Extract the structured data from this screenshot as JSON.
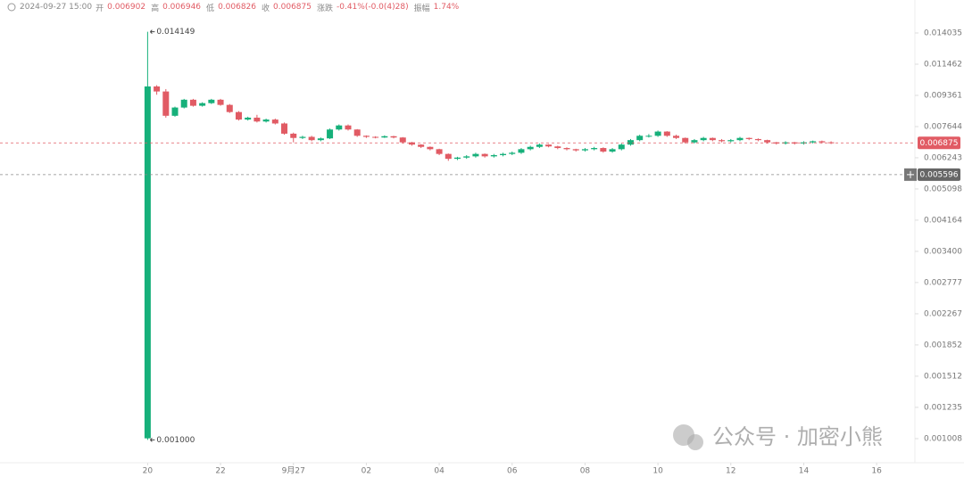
{
  "header": {
    "time": "2024-09-27 15:00",
    "items": [
      {
        "label": "开",
        "value": "0.006902"
      },
      {
        "label": "高",
        "value": "0.006946"
      },
      {
        "label": "低",
        "value": "0.006826"
      },
      {
        "label": "收",
        "value": "0.006875"
      },
      {
        "label": "涨跌",
        "value": "-0.41%(-0.0(4)28)"
      },
      {
        "label": "振幅",
        "value": "1.74%"
      }
    ]
  },
  "watermark": "公众号 · 加密小熊",
  "chart_data": {
    "type": "candlestick",
    "log_scale": true,
    "up_color": "#16b07a",
    "down_color": "#e15b64",
    "ylim": [
      0.000867,
      0.015666
    ],
    "yticks": [
      0.014035,
      0.011462,
      0.009361,
      0.007644,
      0.006243,
      0.005098,
      0.004164,
      {
        "value": 0.0034,
        "label": "0.003400"
      },
      0.002777,
      0.002267,
      0.001852,
      0.001512,
      0.001235,
      0.001008
    ],
    "xlim": [
      -16.2,
      84.2
    ],
    "xticks": [
      {
        "value": 0,
        "label": "20"
      },
      {
        "value": 8,
        "label": "22"
      },
      {
        "value": 16,
        "label": "9月27"
      },
      {
        "value": 24,
        "label": "02"
      },
      {
        "value": 32,
        "label": "04"
      },
      {
        "value": 40,
        "label": "06"
      },
      {
        "value": 48,
        "label": "08"
      },
      {
        "value": 56,
        "label": "10"
      },
      {
        "value": 64,
        "label": "12"
      },
      {
        "value": 72,
        "label": "14"
      },
      {
        "value": 80,
        "label": "16"
      }
    ],
    "max_label": "0.014149",
    "min_label": "0.001000",
    "crosshair_price": 0.005596,
    "ohlc": [
      [
        0.00101,
        0.014149,
        0.001,
        0.00992
      ],
      [
        0.00992,
        0.01,
        0.0094,
        0.0096
      ],
      [
        0.0096,
        0.00975,
        0.0081,
        0.0082
      ],
      [
        0.0082,
        0.0087,
        0.00815,
        0.00865
      ],
      [
        0.00865,
        0.00915,
        0.0086,
        0.0091
      ],
      [
        0.0091,
        0.00915,
        0.0087,
        0.00875
      ],
      [
        0.00875,
        0.00895,
        0.0087,
        0.0089
      ],
      [
        0.0089,
        0.00915,
        0.00885,
        0.0091
      ],
      [
        0.0091,
        0.00915,
        0.00875,
        0.0088
      ],
      [
        0.0088,
        0.00885,
        0.00835,
        0.0084
      ],
      [
        0.0084,
        0.00845,
        0.00795,
        0.008
      ],
      [
        0.008,
        0.00815,
        0.00795,
        0.0081
      ],
      [
        0.0081,
        0.00825,
        0.00785,
        0.0079
      ],
      [
        0.0079,
        0.00805,
        0.00785,
        0.008
      ],
      [
        0.008,
        0.00805,
        0.00775,
        0.0078
      ],
      [
        0.0078,
        0.00785,
        0.00725,
        0.0073
      ],
      [
        0.0073,
        0.00735,
        0.0069,
        0.0071
      ],
      [
        0.0071,
        0.0072,
        0.00705,
        0.00715
      ],
      [
        0.00715,
        0.0072,
        0.00695,
        0.007
      ],
      [
        0.007,
        0.00712,
        0.00695,
        0.00708
      ],
      [
        0.00708,
        0.00755,
        0.00705,
        0.0075
      ],
      [
        0.0075,
        0.00775,
        0.00745,
        0.0077
      ],
      [
        0.0077,
        0.00775,
        0.00745,
        0.0075
      ],
      [
        0.0075,
        0.00752,
        0.00715,
        0.0072
      ],
      [
        0.0072,
        0.00722,
        0.0071,
        0.00715
      ],
      [
        0.00715,
        0.00718,
        0.00708,
        0.00712
      ],
      [
        0.00712,
        0.00722,
        0.0071,
        0.00718
      ],
      [
        0.00718,
        0.0072,
        0.00708,
        0.00712
      ],
      [
        0.00712,
        0.00714,
        0.00685,
        0.0069
      ],
      [
        0.0069,
        0.00692,
        0.00675,
        0.0068
      ],
      [
        0.0068,
        0.00682,
        0.00665,
        0.0067
      ],
      [
        0.0067,
        0.00672,
        0.00655,
        0.0066
      ],
      [
        0.0066,
        0.00662,
        0.00635,
        0.0064
      ],
      [
        0.0064,
        0.00642,
        0.00612,
        0.0062
      ],
      [
        0.0062,
        0.00628,
        0.00615,
        0.00625
      ],
      [
        0.00625,
        0.00635,
        0.0062,
        0.0063
      ],
      [
        0.0063,
        0.00645,
        0.00625,
        0.0064
      ],
      [
        0.0064,
        0.00642,
        0.00625,
        0.0063
      ],
      [
        0.0063,
        0.0064,
        0.00625,
        0.00635
      ],
      [
        0.00635,
        0.00645,
        0.0063,
        0.0064
      ],
      [
        0.0064,
        0.0065,
        0.00635,
        0.00645
      ],
      [
        0.00645,
        0.00665,
        0.0064,
        0.0066
      ],
      [
        0.0066,
        0.00675,
        0.00655,
        0.0067
      ],
      [
        0.0067,
        0.00685,
        0.00665,
        0.0068
      ],
      [
        0.0068,
        0.00682,
        0.00668,
        0.00672
      ],
      [
        0.00672,
        0.00675,
        0.0066,
        0.00665
      ],
      [
        0.00665,
        0.00668,
        0.00655,
        0.0066
      ],
      [
        0.0066,
        0.00662,
        0.0065,
        0.00655
      ],
      [
        0.00655,
        0.00665,
        0.0065,
        0.0066
      ],
      [
        0.0066,
        0.0067,
        0.00655,
        0.00665
      ],
      [
        0.00665,
        0.00668,
        0.00645,
        0.0065
      ],
      [
        0.0065,
        0.00665,
        0.00645,
        0.0066
      ],
      [
        0.0066,
        0.00685,
        0.00655,
        0.0068
      ],
      [
        0.0068,
        0.00705,
        0.00675,
        0.007
      ],
      [
        0.007,
        0.00725,
        0.00695,
        0.0072
      ],
      [
        0.0072,
        0.00728,
        0.00712,
        0.0072
      ],
      [
        0.0072,
        0.00745,
        0.00715,
        0.0074
      ],
      [
        0.0074,
        0.00742,
        0.00715,
        0.0072
      ],
      [
        0.0072,
        0.00725,
        0.00705,
        0.0071
      ],
      [
        0.0071,
        0.00712,
        0.00685,
        0.0069
      ],
      [
        0.0069,
        0.00705,
        0.00685,
        0.007
      ],
      [
        0.007,
        0.00715,
        0.00695,
        0.0071
      ],
      [
        0.0071,
        0.00712,
        0.00695,
        0.007
      ],
      [
        0.007,
        0.00705,
        0.0069,
        0.00695
      ],
      [
        0.00695,
        0.00705,
        0.0069,
        0.007
      ],
      [
        0.007,
        0.00715,
        0.00695,
        0.0071
      ],
      [
        0.0071,
        0.00712,
        0.007,
        0.00705
      ],
      [
        0.00705,
        0.00708,
        0.00695,
        0.007
      ],
      [
        0.007,
        0.00702,
        0.00685,
        0.0069
      ],
      [
        0.0069,
        0.00692,
        0.0068,
        0.00685
      ],
      [
        0.00685,
        0.00695,
        0.0068,
        0.0069
      ],
      [
        0.0069,
        0.00692,
        0.0068,
        0.00685
      ],
      [
        0.00685,
        0.00695,
        0.0068,
        0.0069
      ],
      [
        0.0069,
        0.00698,
        0.00685,
        0.00695
      ],
      [
        0.00695,
        0.00698,
        0.00685,
        0.0069
      ],
      [
        0.006902,
        0.006946,
        0.006826,
        0.006875
      ]
    ]
  }
}
